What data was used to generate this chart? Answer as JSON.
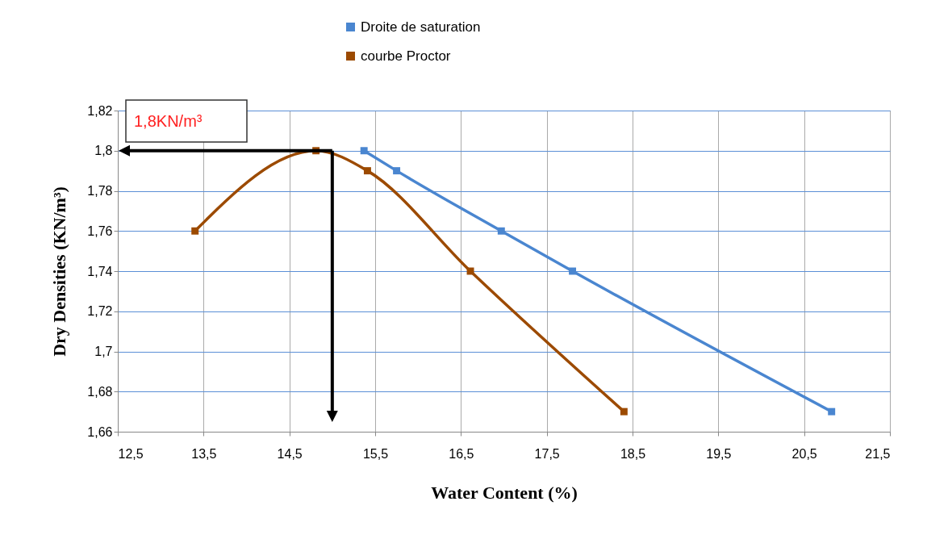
{
  "chart_data": {
    "type": "line",
    "xlabel": "Water Content  (%)",
    "ylabel": "Dry Densities  (KN/m³)",
    "series": [
      {
        "name": "Droite de saturation",
        "color": "#4a86d0",
        "x": [
          15.37,
          15.75,
          16.97,
          17.8,
          20.82
        ],
        "values": [
          1.8,
          1.79,
          1.76,
          1.74,
          1.67
        ]
      },
      {
        "name": "courbe Proctor",
        "color": "#9c4a00",
        "x": [
          13.4,
          14.81,
          15.41,
          16.61,
          18.4
        ],
        "values": [
          1.76,
          1.8,
          1.79,
          1.74,
          1.67
        ]
      }
    ],
    "xlim": [
      12.5,
      21.5
    ],
    "xticks": [
      {
        "value": 12.5,
        "label": "12,5"
      },
      {
        "value": 13.5,
        "label": "13,5"
      },
      {
        "value": 14.5,
        "label": "14,5"
      },
      {
        "value": 15.5,
        "label": "15,5"
      },
      {
        "value": 16.5,
        "label": "16,5"
      },
      {
        "value": 17.5,
        "label": "17,5"
      },
      {
        "value": 18.5,
        "label": "18,5"
      },
      {
        "value": 19.5,
        "label": "19,5"
      },
      {
        "value": 20.5,
        "label": "20,5"
      },
      {
        "value": 21.5,
        "label": "21,5"
      }
    ],
    "ylim": [
      1.66,
      1.82
    ],
    "yticks": [
      {
        "value": 1.66,
        "label": "1,66"
      },
      {
        "value": 1.68,
        "label": "1,68"
      },
      {
        "value": 1.7,
        "label": "1,7"
      },
      {
        "value": 1.72,
        "label": "1,72"
      },
      {
        "value": 1.74,
        "label": "1,74"
      },
      {
        "value": 1.76,
        "label": "1,76"
      },
      {
        "value": 1.78,
        "label": "1,78"
      },
      {
        "value": 1.8,
        "label": "1,8"
      },
      {
        "value": 1.82,
        "label": "1,82"
      }
    ],
    "annotations": [
      "1,8KN/m³"
    ],
    "ref_lines": [
      {
        "axis": "x",
        "value": 15,
        "color": "#000000"
      },
      {
        "axis": "y",
        "value": 1.8,
        "color": "#000000"
      }
    ],
    "grid": true,
    "legend": "top",
    "marker": "square",
    "line_style": "solid"
  }
}
